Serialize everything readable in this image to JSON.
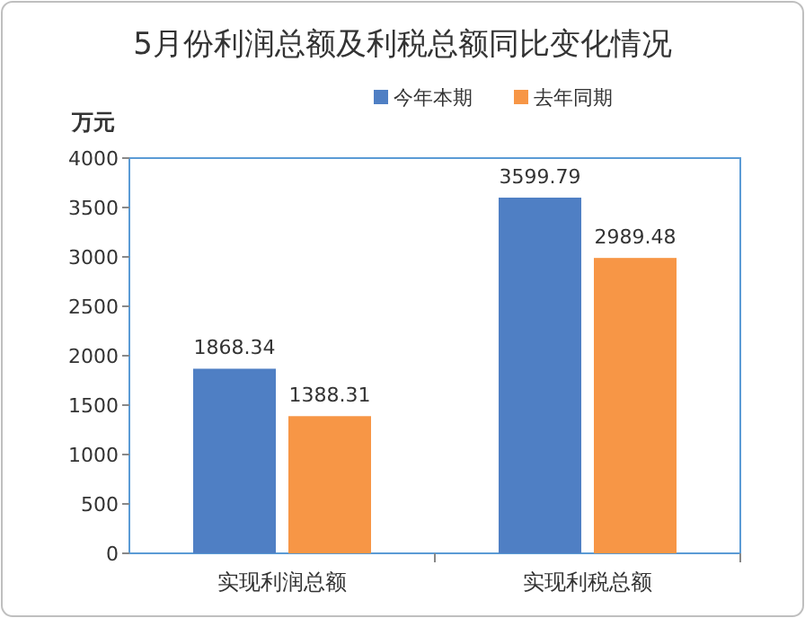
{
  "chart_data": {
    "type": "bar",
    "title": "5月份利润总额及利税总额同比变化情况",
    "ylabel": "万元",
    "categories": [
      "实现利润总额",
      "实现利税总额"
    ],
    "series": [
      {
        "name": "今年本期",
        "color": "#4f7fc4",
        "values": [
          1868.34,
          3599.79
        ]
      },
      {
        "name": "去年同期",
        "color": "#f79646",
        "values": [
          1388.31,
          2989.48
        ]
      }
    ],
    "ylim": [
      0,
      4000
    ],
    "yticks": [
      0,
      500,
      1000,
      1500,
      2000,
      2500,
      3000,
      3500,
      4000
    ],
    "data_labels": true,
    "legend": "top right",
    "grid": false
  }
}
